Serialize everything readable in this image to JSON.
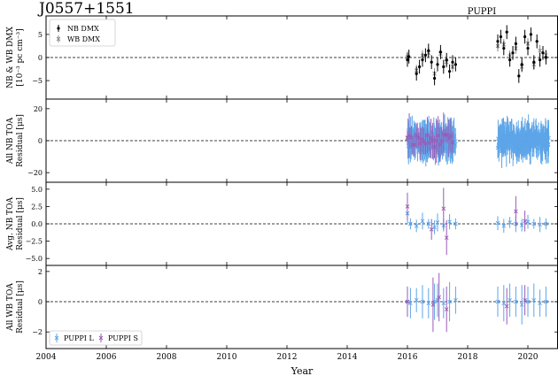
{
  "figure": {
    "pulsar_name": "J0557+1551",
    "instrument_label": "PUPPI"
  },
  "colors": {
    "puppi_l": "#5da5e8",
    "puppi_s": "#9b59b6",
    "nb_dmx": "#000000",
    "wb_dmx": "#888888"
  },
  "chart_data": [
    {
      "type": "scatter",
      "panel": "dmx",
      "ylabel_line1": "NB & WB DMX",
      "ylabel_line2": "[10⁻³ pc cm⁻³]",
      "ylim": [
        -9,
        9
      ],
      "yticks": [
        -5,
        0,
        5
      ],
      "ytick_labels": [
        "−5",
        "0",
        "5"
      ],
      "legend": {
        "placement": "upper-left",
        "entries": [
          "NB DMX",
          "WB DMX"
        ]
      },
      "series": [
        {
          "name": "NB DMX",
          "points": [
            [
              2016.0,
              -0.5
            ],
            [
              2016.05,
              0.2
            ],
            [
              2016.3,
              -3.5
            ],
            [
              2016.4,
              -2.0
            ],
            [
              2016.5,
              -0.5
            ],
            [
              2016.6,
              0.5
            ],
            [
              2016.7,
              1.5
            ],
            [
              2016.8,
              -1.0
            ],
            [
              2016.9,
              -4.5
            ],
            [
              2017.0,
              -1.5
            ],
            [
              2017.1,
              1.2
            ],
            [
              2017.2,
              -2.0
            ],
            [
              2017.3,
              -0.5
            ],
            [
              2017.4,
              -3.0
            ],
            [
              2017.5,
              -1.0
            ],
            [
              2017.6,
              -1.5
            ],
            [
              2019.0,
              3.5
            ],
            [
              2019.1,
              4.5
            ],
            [
              2019.2,
              2.0
            ],
            [
              2019.3,
              5.5
            ],
            [
              2019.4,
              -0.5
            ],
            [
              2019.5,
              1.0
            ],
            [
              2019.6,
              3.0
            ],
            [
              2019.7,
              -4.0
            ],
            [
              2019.8,
              -1.5
            ],
            [
              2019.9,
              4.5
            ],
            [
              2020.0,
              2.0
            ],
            [
              2020.1,
              5.0
            ],
            [
              2020.2,
              -1.0
            ],
            [
              2020.3,
              3.5
            ],
            [
              2020.4,
              -0.5
            ],
            [
              2020.5,
              1.0
            ],
            [
              2020.6,
              0.0
            ]
          ]
        },
        {
          "name": "WB DMX",
          "points": [
            [
              2016.0,
              0.1
            ],
            [
              2016.3,
              -2.8
            ],
            [
              2016.5,
              0.4
            ],
            [
              2016.7,
              1.0
            ],
            [
              2016.9,
              -3.5
            ],
            [
              2017.1,
              0.8
            ],
            [
              2017.3,
              -1.0
            ],
            [
              2017.5,
              -2.0
            ],
            [
              2019.0,
              2.5
            ],
            [
              2019.2,
              2.8
            ],
            [
              2019.4,
              0.3
            ],
            [
              2019.6,
              2.0
            ],
            [
              2019.8,
              -2.0
            ],
            [
              2020.0,
              3.0
            ],
            [
              2020.2,
              -1.5
            ],
            [
              2020.4,
              1.5
            ],
            [
              2020.6,
              0.5
            ]
          ]
        }
      ]
    },
    {
      "type": "scatter",
      "panel": "all_nb_toa",
      "ylabel_line1": "All NB TOA",
      "ylabel_line2": "Residual [μs]",
      "ylim": [
        -26,
        26
      ],
      "yticks": [
        -20,
        0,
        20
      ],
      "ytick_labels": [
        "−20",
        "0",
        "20"
      ],
      "spread": {
        "clusters": [
          [
            2016.0,
            2017.6
          ],
          [
            2019.0,
            2020.7
          ]
        ],
        "puppi_l_error": 9,
        "puppi_s_error": 10
      }
    },
    {
      "type": "scatter",
      "panel": "avg_nb_toa",
      "ylabel_line1": "Avg. NB TOA",
      "ylabel_line2": "Residual [μs]",
      "ylim": [
        -6,
        6
      ],
      "yticks": [
        -5,
        -2.5,
        0,
        2.5,
        5
      ],
      "ytick_labels": [
        "−5.0",
        "−2.5",
        "0.0",
        "2.5",
        "5.0"
      ],
      "series": [
        {
          "name": "PUPPI L",
          "points": [
            [
              2016.0,
              1.5,
              1.6
            ],
            [
              2016.1,
              0.0,
              0.8
            ],
            [
              2016.3,
              -0.3,
              0.9
            ],
            [
              2016.5,
              0.4,
              1.2
            ],
            [
              2016.7,
              0.0,
              0.7
            ],
            [
              2016.9,
              -0.5,
              1.0
            ],
            [
              2017.0,
              0.2,
              1.3
            ],
            [
              2017.2,
              -0.2,
              0.9
            ],
            [
              2017.4,
              0.3,
              1.1
            ],
            [
              2017.6,
              0.0,
              0.8
            ],
            [
              2019.0,
              0.1,
              1.0
            ],
            [
              2019.2,
              -0.3,
              1.0
            ],
            [
              2019.4,
              0.2,
              0.8
            ],
            [
              2019.6,
              0.0,
              1.2
            ],
            [
              2019.8,
              -0.2,
              0.9
            ],
            [
              2020.0,
              0.3,
              1.0
            ],
            [
              2020.2,
              0.0,
              0.7
            ],
            [
              2020.4,
              -0.1,
              1.1
            ],
            [
              2020.6,
              0.0,
              0.8
            ]
          ]
        },
        {
          "name": "PUPPI S",
          "points": [
            [
              2016.0,
              2.5,
              2.0
            ],
            [
              2016.8,
              -0.8,
              1.5
            ],
            [
              2017.2,
              2.2,
              3.0
            ],
            [
              2017.3,
              -2.0,
              2.5
            ],
            [
              2019.6,
              1.8,
              2.2
            ],
            [
              2019.9,
              0.4,
              1.5
            ]
          ]
        }
      ]
    },
    {
      "type": "scatter",
      "panel": "all_wb_toa",
      "ylabel_line1": "All WB TOA",
      "ylabel_line2": "Residual [μs]",
      "ylim": [
        -3.1,
        2.4
      ],
      "yticks": [
        -2,
        0,
        2
      ],
      "ytick_labels": [
        "−2",
        "0",
        "2"
      ],
      "xlabel": "Year",
      "xlim": [
        2004,
        2021
      ],
      "xticks": [
        2004,
        2006,
        2008,
        2010,
        2012,
        2014,
        2016,
        2018,
        2020
      ],
      "xtick_labels": [
        "2004",
        "2006",
        "2008",
        "2010",
        "2012",
        "2014",
        "2016",
        "2018",
        "2020"
      ],
      "legend": {
        "placement": "lower-left",
        "entries": [
          "PUPPI L",
          "PUPPI S"
        ]
      },
      "series": [
        {
          "name": "PUPPI L",
          "points": [
            [
              2016.0,
              0.0,
              1.0
            ],
            [
              2016.1,
              -0.1,
              1.0
            ],
            [
              2016.3,
              0.1,
              0.8
            ],
            [
              2016.5,
              0.0,
              1.1
            ],
            [
              2016.7,
              -0.1,
              1.0
            ],
            [
              2016.9,
              0.0,
              1.2
            ],
            [
              2017.0,
              0.1,
              1.1
            ],
            [
              2017.2,
              -0.1,
              1.0
            ],
            [
              2017.4,
              0.0,
              1.3
            ],
            [
              2017.6,
              0.1,
              0.9
            ],
            [
              2019.0,
              0.0,
              1.0
            ],
            [
              2019.2,
              -0.1,
              1.2
            ],
            [
              2019.4,
              0.1,
              1.1
            ],
            [
              2019.6,
              0.0,
              1.0
            ],
            [
              2019.8,
              -0.2,
              1.3
            ],
            [
              2020.0,
              0.0,
              1.0
            ],
            [
              2020.2,
              0.1,
              1.1
            ],
            [
              2020.4,
              -0.1,
              0.9
            ],
            [
              2020.6,
              0.0,
              1.0
            ]
          ]
        },
        {
          "name": "PUPPI S",
          "points": [
            [
              2016.0,
              0.0,
              1.0
            ],
            [
              2016.85,
              -0.2,
              1.8
            ],
            [
              2017.05,
              0.3,
              1.6
            ],
            [
              2017.3,
              -0.5,
              1.5
            ],
            [
              2019.3,
              -0.3,
              1.2
            ],
            [
              2019.9,
              0.1,
              1.0
            ]
          ]
        }
      ]
    }
  ]
}
